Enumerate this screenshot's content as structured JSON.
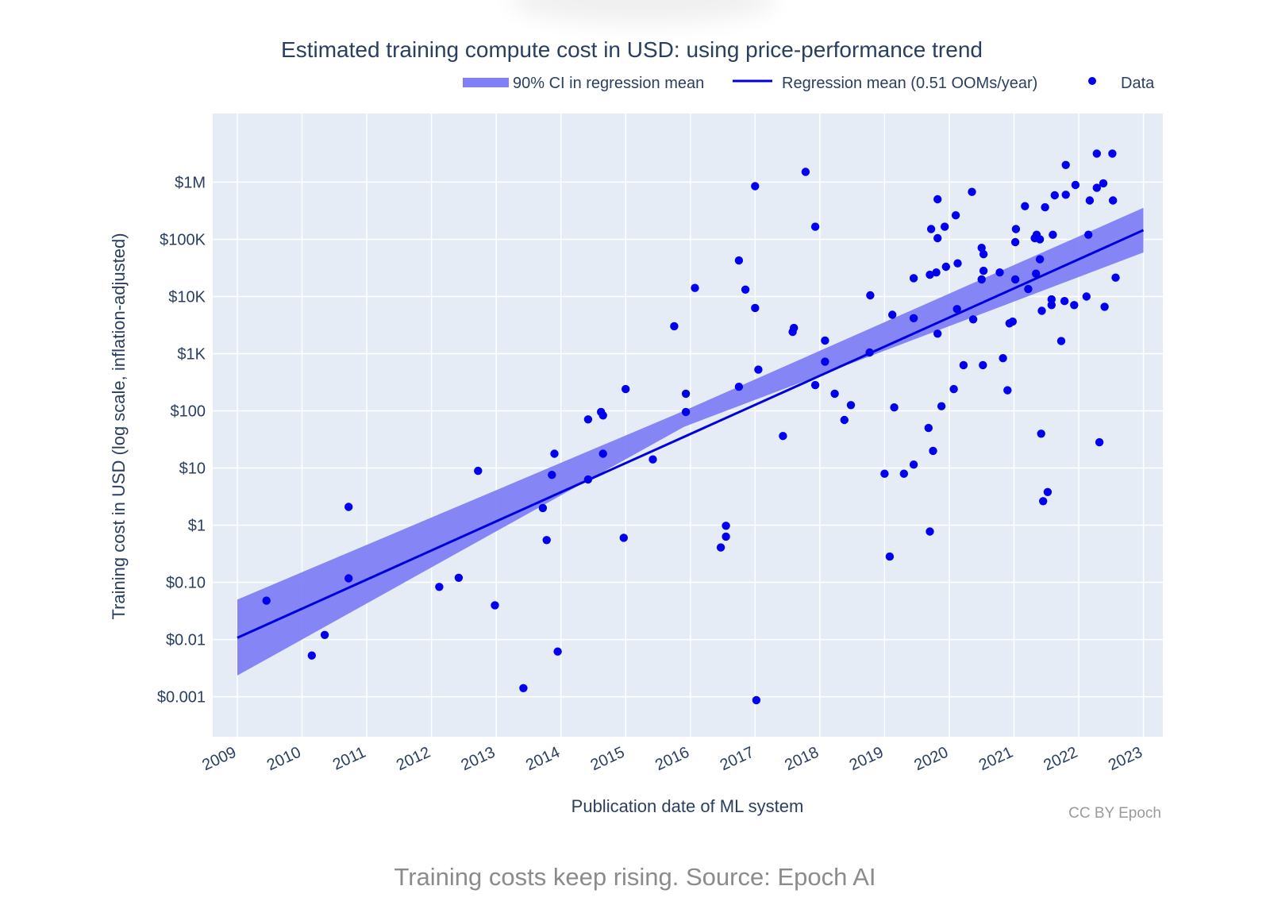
{
  "caption": "Training costs keep rising. Source: Epoch AI",
  "colors": {
    "plot_bg": "#e5ecf6",
    "grid": "#ffffff",
    "band": "#7f7ff6",
    "line": "#0000dd",
    "dot": "#0000ee"
  },
  "chart_data": {
    "type": "scatter",
    "title": "Estimated training compute cost in USD: using price-performance trend",
    "xlabel": "Publication date of ML system",
    "ylabel": "Training cost in USD (log scale, inflation-adjusted)",
    "credit": "CC BY Epoch",
    "y_scale": "log",
    "xlim": [
      2008.62,
      2023.3
    ],
    "ylim_log10": [
      -3.7,
      7.2
    ],
    "x_ticks": [
      "2009",
      "2010",
      "2011",
      "2012",
      "2013",
      "2014",
      "2015",
      "2016",
      "2017",
      "2018",
      "2019",
      "2020",
      "2021",
      "2022",
      "2023"
    ],
    "y_ticks": [
      {
        "label": "$1M",
        "log": 6
      },
      {
        "label": "$100K",
        "log": 5
      },
      {
        "label": "$10K",
        "log": 4
      },
      {
        "label": "$1K",
        "log": 3
      },
      {
        "label": "$100",
        "log": 2
      },
      {
        "label": "$10",
        "log": 1
      },
      {
        "label": "$1",
        "log": 0
      },
      {
        "label": "$0.10",
        "log": -1
      },
      {
        "label": "$0.01",
        "log": -2
      },
      {
        "label": "$0.001",
        "log": -3
      }
    ],
    "legend": {
      "position": "top-right",
      "items": [
        {
          "name": "90% CI in regression mean",
          "kind": "band"
        },
        {
          "name": "Regression mean (0.51 OOMs/year)",
          "kind": "line"
        },
        {
          "name": "Data",
          "kind": "marker"
        }
      ]
    },
    "regression": {
      "oom_per_year": 0.51,
      "mean": [
        [
          2009.0,
          -1.97
        ],
        [
          2023.0,
          5.16
        ]
      ],
      "ci_upper": [
        [
          2009.0,
          -1.3
        ],
        [
          2015.9,
          2.0
        ],
        [
          2023.0,
          5.55
        ]
      ],
      "ci_lower": [
        [
          2009.0,
          -2.63
        ],
        [
          2015.9,
          1.72
        ],
        [
          2023.0,
          4.77
        ]
      ]
    },
    "points": [
      [
        2009.45,
        -1.32
      ],
      [
        2010.15,
        -2.28
      ],
      [
        2010.35,
        -1.92
      ],
      [
        2010.72,
        0.32
      ],
      [
        2010.72,
        -0.93
      ],
      [
        2012.12,
        -1.08
      ],
      [
        2012.42,
        -0.92
      ],
      [
        2012.72,
        0.95
      ],
      [
        2012.98,
        -1.4
      ],
      [
        2013.42,
        -2.85
      ],
      [
        2013.72,
        0.3
      ],
      [
        2013.78,
        -0.26
      ],
      [
        2013.86,
        0.88
      ],
      [
        2013.9,
        1.25
      ],
      [
        2013.95,
        -2.21
      ],
      [
        2014.42,
        0.8
      ],
      [
        2014.42,
        1.85
      ],
      [
        2014.62,
        1.98
      ],
      [
        2014.65,
        1.25
      ],
      [
        2014.65,
        1.92
      ],
      [
        2014.97,
        -0.22
      ],
      [
        2015.0,
        2.38
      ],
      [
        2015.42,
        1.15
      ],
      [
        2015.75,
        3.48
      ],
      [
        2015.93,
        2.3
      ],
      [
        2015.93,
        1.98
      ],
      [
        2016.07,
        4.15
      ],
      [
        2016.47,
        -0.39
      ],
      [
        2016.55,
        -0.01
      ],
      [
        2016.55,
        -0.2
      ],
      [
        2016.75,
        2.42
      ],
      [
        2016.75,
        4.63
      ],
      [
        2016.85,
        4.12
      ],
      [
        2017.0,
        5.93
      ],
      [
        2017.0,
        3.8
      ],
      [
        2017.02,
        -3.06
      ],
      [
        2017.05,
        2.72
      ],
      [
        2017.43,
        1.56
      ],
      [
        2017.58,
        3.38
      ],
      [
        2017.6,
        3.45
      ],
      [
        2017.78,
        6.18
      ],
      [
        2017.93,
        5.22
      ],
      [
        2017.93,
        2.45
      ],
      [
        2018.08,
        3.23
      ],
      [
        2018.08,
        2.86
      ],
      [
        2018.23,
        2.3
      ],
      [
        2018.38,
        1.84
      ],
      [
        2018.48,
        2.1
      ],
      [
        2018.77,
        3.02
      ],
      [
        2018.78,
        4.02
      ],
      [
        2019.0,
        0.9
      ],
      [
        2019.08,
        -0.55
      ],
      [
        2019.12,
        3.68
      ],
      [
        2019.15,
        2.06
      ],
      [
        2019.3,
        0.9
      ],
      [
        2019.45,
        1.06
      ],
      [
        2019.45,
        3.62
      ],
      [
        2019.45,
        4.32
      ],
      [
        2019.68,
        1.7
      ],
      [
        2019.7,
        4.38
      ],
      [
        2019.7,
        -0.11
      ],
      [
        2019.72,
        5.18
      ],
      [
        2019.75,
        1.3
      ],
      [
        2019.8,
        4.42
      ],
      [
        2019.82,
        3.35
      ],
      [
        2019.82,
        5.7
      ],
      [
        2019.82,
        5.02
      ],
      [
        2019.88,
        2.08
      ],
      [
        2019.93,
        5.22
      ],
      [
        2019.95,
        4.52
      ],
      [
        2020.07,
        2.38
      ],
      [
        2020.1,
        5.42
      ],
      [
        2020.12,
        3.78
      ],
      [
        2020.13,
        4.58
      ],
      [
        2020.22,
        2.8
      ],
      [
        2020.35,
        5.83
      ],
      [
        2020.37,
        3.6
      ],
      [
        2020.5,
        4.3
      ],
      [
        2020.5,
        4.85
      ],
      [
        2020.52,
        2.8
      ],
      [
        2020.53,
        4.45
      ],
      [
        2020.53,
        4.74
      ],
      [
        2020.78,
        4.42
      ],
      [
        2020.83,
        2.92
      ],
      [
        2020.9,
        2.36
      ],
      [
        2020.93,
        3.53
      ],
      [
        2020.98,
        3.56
      ],
      [
        2021.02,
        4.3
      ],
      [
        2021.02,
        4.95
      ],
      [
        2021.03,
        5.18
      ],
      [
        2021.17,
        5.58
      ],
      [
        2021.22,
        4.13
      ],
      [
        2021.32,
        5.02
      ],
      [
        2021.34,
        4.4
      ],
      [
        2021.35,
        5.08
      ],
      [
        2021.4,
        5.0
      ],
      [
        2021.4,
        4.65
      ],
      [
        2021.42,
        1.6
      ],
      [
        2021.43,
        3.75
      ],
      [
        2021.45,
        0.42
      ],
      [
        2021.48,
        5.56
      ],
      [
        2021.52,
        0.58
      ],
      [
        2021.58,
        3.85
      ],
      [
        2021.58,
        3.95
      ],
      [
        2021.6,
        5.08
      ],
      [
        2021.63,
        5.77
      ],
      [
        2021.73,
        3.22
      ],
      [
        2021.78,
        3.92
      ],
      [
        2021.8,
        6.3
      ],
      [
        2021.8,
        5.78
      ],
      [
        2021.93,
        3.85
      ],
      [
        2021.95,
        5.95
      ],
      [
        2022.12,
        4.0
      ],
      [
        2022.15,
        5.08
      ],
      [
        2022.17,
        5.68
      ],
      [
        2022.28,
        6.5
      ],
      [
        2022.28,
        5.9
      ],
      [
        2022.32,
        1.45
      ],
      [
        2022.38,
        5.98
      ],
      [
        2022.4,
        3.82
      ],
      [
        2022.52,
        6.5
      ],
      [
        2022.53,
        5.68
      ],
      [
        2022.57,
        4.33
      ]
    ]
  }
}
